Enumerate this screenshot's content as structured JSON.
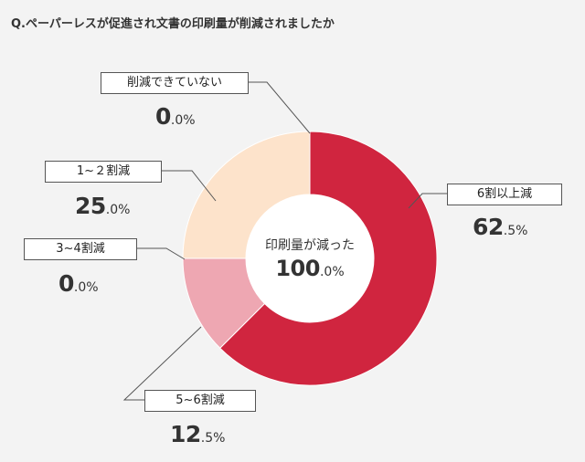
{
  "question": "Q.ペーパーレスが促進され文書の印刷量が削減されましたか",
  "center": {
    "title": "印刷量が減った",
    "value_int": "100",
    "value_dec": ".0%"
  },
  "chart_data": {
    "type": "pie",
    "donut": true,
    "title": "Q.ペーパーレスが促進され文書の印刷量が削減されましたか",
    "slices": [
      {
        "label": "6割以上減",
        "value": 62.5,
        "int": "62",
        "dec": ".5%",
        "color": "#d0253f"
      },
      {
        "label": "5~6割減",
        "value": 12.5,
        "int": "12",
        "dec": ".5%",
        "color": "#eea7b2"
      },
      {
        "label": "3~4割減",
        "value": 0.0,
        "int": "0",
        "dec": ".0%",
        "color": "#e9b7c0"
      },
      {
        "label": "1~２割減",
        "value": 25.0,
        "int": "25",
        "dec": ".0%",
        "color": "#fde3cb"
      },
      {
        "label": "削減できていない",
        "value": 0.0,
        "int": "0",
        "dec": ".0%",
        "color": "#fbe9d6"
      }
    ]
  }
}
